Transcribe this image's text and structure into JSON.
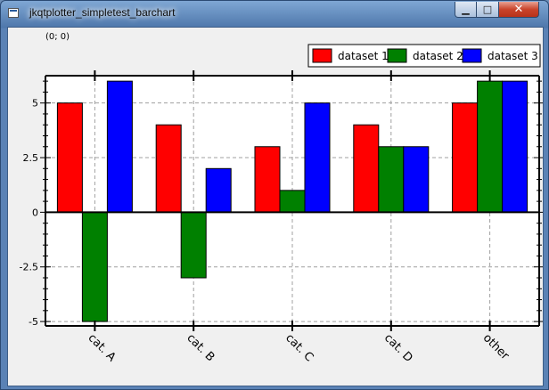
{
  "window": {
    "title": "jkqtplotter_simpletest_barchart",
    "min_glyph": "▁",
    "max_glyph": "□",
    "close_glyph": "✕"
  },
  "status": {
    "coordinates": "(0; 0)"
  },
  "colors": {
    "series": [
      "#ff0000",
      "#008000",
      "#0000ff"
    ]
  },
  "chart_data": {
    "type": "bar",
    "categories": [
      "cat. A",
      "cat. B",
      "cat. C",
      "cat. D",
      "other"
    ],
    "series": [
      {
        "name": "dataset 1",
        "values": [
          5,
          4,
          3,
          4,
          5
        ]
      },
      {
        "name": "dataset 2",
        "values": [
          -5,
          -3,
          1,
          3,
          6
        ]
      },
      {
        "name": "dataset 3",
        "values": [
          6,
          2,
          5,
          3,
          6
        ]
      }
    ],
    "ylim": [
      -5.2,
      6.25
    ],
    "yticks": [
      -5,
      -2.5,
      0,
      2.5,
      5
    ],
    "ytick_labels": [
      "-5",
      "-2.5",
      "0",
      "2.5",
      "5"
    ],
    "grid": true,
    "legend": "top-right",
    "title": "",
    "xlabel": "",
    "ylabel": ""
  }
}
